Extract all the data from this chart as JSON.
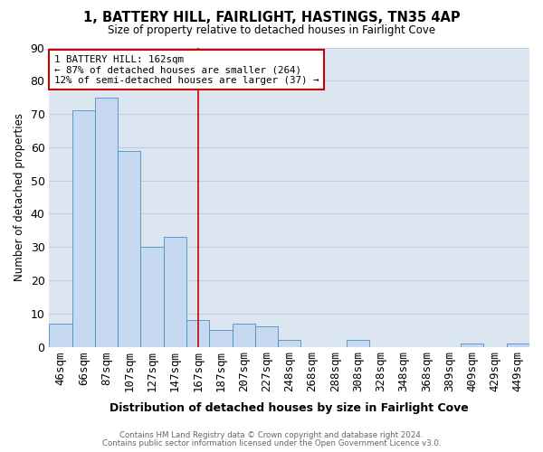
{
  "title1": "1, BATTERY HILL, FAIRLIGHT, HASTINGS, TN35 4AP",
  "title2": "Size of property relative to detached houses in Fairlight Cove",
  "xlabel": "Distribution of detached houses by size in Fairlight Cove",
  "ylabel": "Number of detached properties",
  "footnote1": "Contains HM Land Registry data © Crown copyright and database right 2024.",
  "footnote2": "Contains public sector information licensed under the Open Government Licence v3.0.",
  "categories": [
    "46sqm",
    "66sqm",
    "87sqm",
    "107sqm",
    "127sqm",
    "147sqm",
    "167sqm",
    "187sqm",
    "207sqm",
    "227sqm",
    "248sqm",
    "268sqm",
    "288sqm",
    "308sqm",
    "328sqm",
    "348sqm",
    "368sqm",
    "389sqm",
    "409sqm",
    "429sqm",
    "449sqm"
  ],
  "values": [
    7,
    71,
    75,
    59,
    30,
    33,
    8,
    5,
    7,
    6,
    2,
    0,
    0,
    2,
    0,
    0,
    0,
    0,
    1,
    0,
    1
  ],
  "bar_color": "#c6d9f0",
  "bar_edge_color": "#4a90c4",
  "bg_color": "#dce6f1",
  "grid_color": "#c0cedc",
  "red_line_x": 6,
  "annotation_line1": "1 BATTERY HILL: 162sqm",
  "annotation_line2": "← 87% of detached houses are smaller (264)",
  "annotation_line3": "12% of semi-detached houses are larger (37) →",
  "annotation_box_edgecolor": "#cc0000",
  "ylim": [
    0,
    90
  ],
  "yticks": [
    0,
    10,
    20,
    30,
    40,
    50,
    60,
    70,
    80,
    90
  ]
}
